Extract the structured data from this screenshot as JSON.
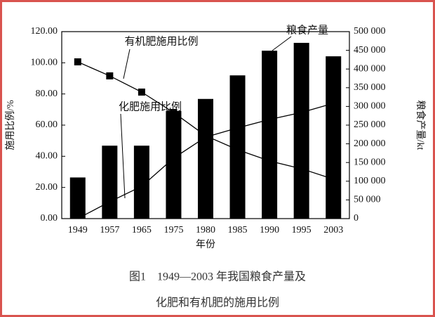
{
  "chart_data": {
    "type": "bar-line",
    "caption": [
      "图1　1949—2003 年我国粮食产量及",
      "化肥和有机肥的施用比例"
    ],
    "x_label": "年份",
    "y_label": "施用比例/%",
    "y2_label": "粮食产量/kt",
    "categories": [
      "1949",
      "1957",
      "1965",
      "1975",
      "1980",
      "1985",
      "1990",
      "1995",
      "2003"
    ],
    "series": [
      {
        "name": "粮食产量",
        "type": "bar",
        "axis": "y2",
        "color": "#000000",
        "values": [
          110000,
          195000,
          195000,
          288000,
          320000,
          383000,
          449000,
          470000,
          434000
        ]
      },
      {
        "name": "有机肥施用比例",
        "type": "line",
        "marker": "square",
        "color": "#000000",
        "values": [
          100.6,
          91.6,
          81.2,
          68.1,
          53.2,
          44.2,
          37.0,
          32.0,
          25.3
        ]
      },
      {
        "name": "化肥施用比例",
        "type": "line",
        "color": "#000000",
        "values": [
          0,
          10.8,
          20.7,
          38.8,
          52.3,
          58.2,
          63.6,
          68.1,
          74.0
        ]
      }
    ],
    "ylim": [
      0,
      120
    ],
    "yticks": [
      {
        "value": 0,
        "label": "0.00"
      },
      {
        "value": 20,
        "label": "20.00"
      },
      {
        "value": 40,
        "label": "40.00"
      },
      {
        "value": 60,
        "label": "60.00"
      },
      {
        "value": 80,
        "label": "80.00"
      },
      {
        "value": 100,
        "label": "100.00"
      },
      {
        "value": 120,
        "label": "120.00"
      }
    ],
    "y2lim": [
      0,
      500000
    ],
    "y2ticks": [
      0,
      {
        "value": 50000,
        "label": "50 000"
      },
      {
        "value": 100000,
        "label": "100 000"
      },
      {
        "value": 150000,
        "label": "150 000"
      },
      {
        "value": 200000,
        "label": "200 000"
      },
      {
        "value": 250000,
        "label": "250 000"
      },
      {
        "value": 300000,
        "label": "300 000"
      },
      {
        "value": 350000,
        "label": "350 000"
      },
      {
        "value": 400000,
        "label": "400 000"
      },
      {
        "value": 450000,
        "label": "450 000"
      },
      {
        "value": 500000,
        "label": "500 000"
      }
    ],
    "grid": false,
    "frame_color": "#d9534f"
  }
}
